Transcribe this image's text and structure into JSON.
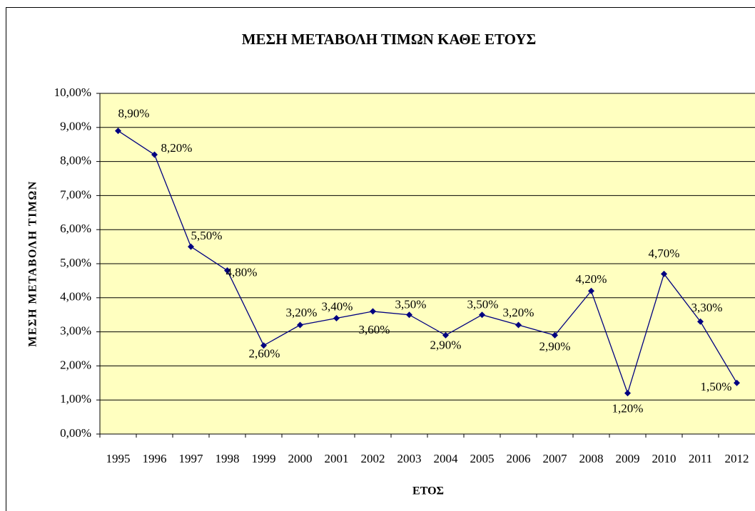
{
  "chart_data": {
    "type": "line",
    "title": "ΜΕΣΗ ΜΕΤΑΒΟΛΗ ΤΙΜΩΝ ΚΑΘΕ ΕΤΟΥΣ",
    "x_label": "ΕΤΟΣ",
    "y_label": "ΜΕΣΗ ΜΕΤΑΒΟΛΗ ΤΙΜΩΝ",
    "categories": [
      "1995",
      "1996",
      "1997",
      "1998",
      "1999",
      "2000",
      "2001",
      "2002",
      "2003",
      "2004",
      "2005",
      "2006",
      "2007",
      "2008",
      "2009",
      "2010",
      "2011",
      "2012"
    ],
    "series": [
      {
        "color": "#000080",
        "values": [
          8.9,
          8.2,
          5.5,
          4.8,
          2.6,
          3.2,
          3.4,
          3.6,
          3.5,
          2.9,
          3.5,
          3.2,
          2.9,
          4.2,
          1.2,
          4.7,
          3.3,
          1.5
        ],
        "value_labels": [
          "8,90%",
          "8,20%",
          "5,50%",
          "4,80%",
          "2,60%",
          "3,20%",
          "3,40%",
          "3,60%",
          "3,50%",
          "2,90%",
          "3,50%",
          "3,20%",
          "2,90%",
          "4,20%",
          "1,20%",
          "4,70%",
          "3,30%",
          "1,50%"
        ]
      }
    ],
    "ylim": [
      0,
      10
    ],
    "yticks": [
      {
        "value": 0,
        "label": "0,00%"
      },
      {
        "value": 1,
        "label": "1,00%"
      },
      {
        "value": 2,
        "label": "2,00%"
      },
      {
        "value": 3,
        "label": "3,00%"
      },
      {
        "value": 4,
        "label": "4,00%"
      },
      {
        "value": 5,
        "label": "5,00%"
      },
      {
        "value": 6,
        "label": "6,00%"
      },
      {
        "value": 7,
        "label": "7,00%"
      },
      {
        "value": 8,
        "label": "8,00%"
      },
      {
        "value": 9,
        "label": "9,00%"
      },
      {
        "value": 10,
        "label": "10,00%"
      }
    ],
    "grid": true,
    "plot_background": "#ffffc0"
  }
}
